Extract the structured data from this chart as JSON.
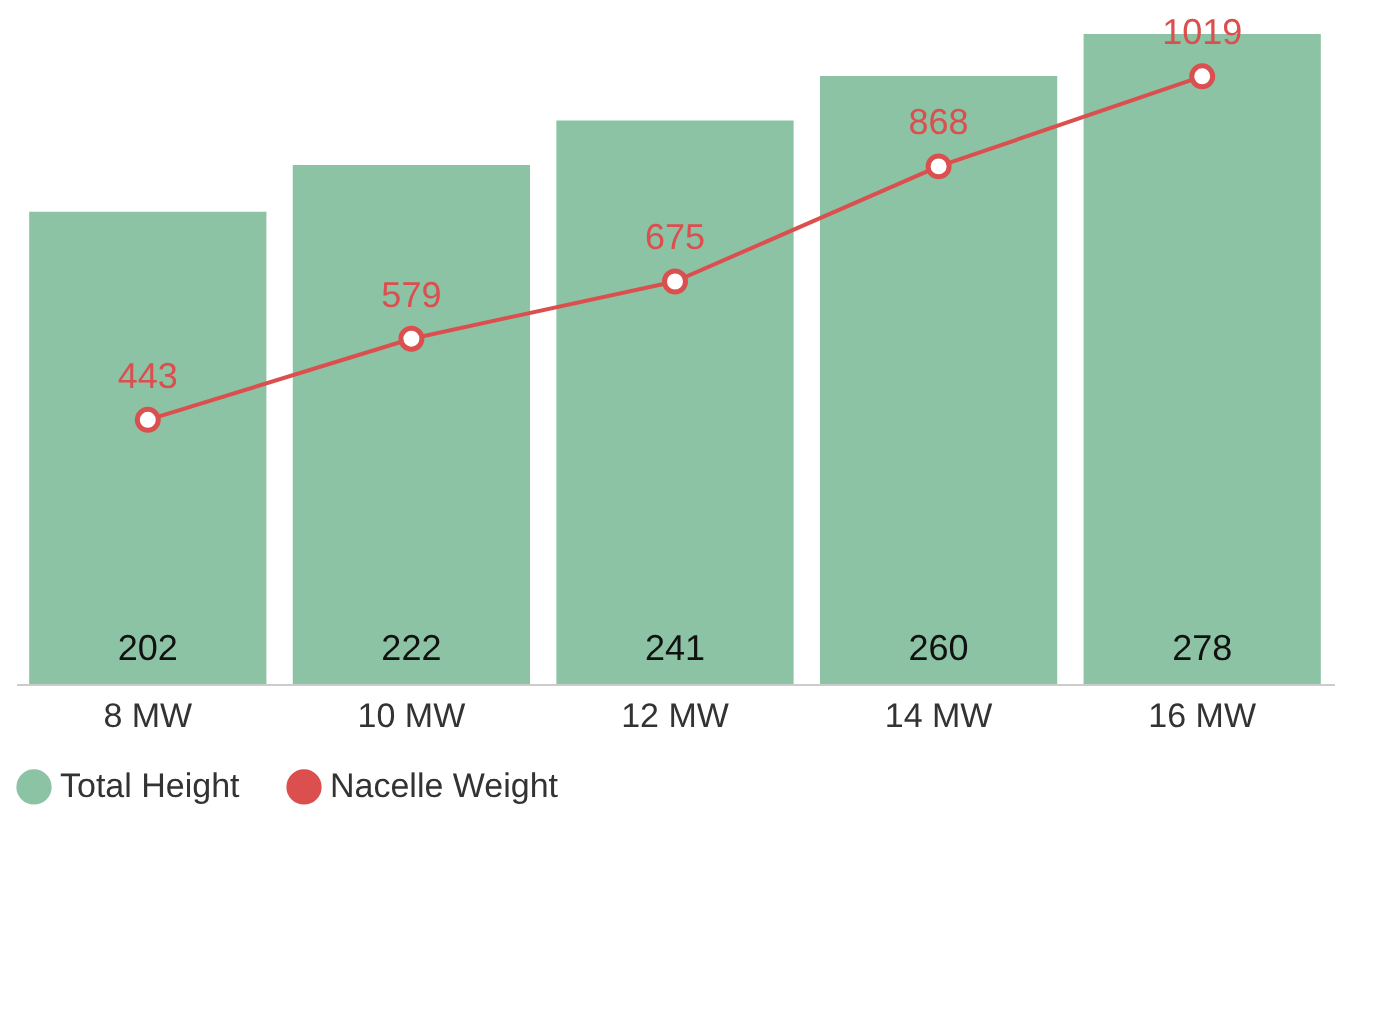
{
  "chart_data": {
    "type": "bar",
    "categories": [
      "8 MW",
      "10 MW",
      "12 MW",
      "14 MW",
      "16 MW"
    ],
    "series": [
      {
        "name": "Total Height",
        "color": "#8cc3a5",
        "values": [
          202,
          222,
          241,
          260,
          278
        ]
      },
      {
        "name": "Nacelle Weight",
        "type": "line",
        "axis": "y2",
        "color": "#db4f4f",
        "values": [
          443,
          579,
          675,
          868,
          1019
        ]
      }
    ],
    "ylim": [
      0,
      278
    ],
    "y2lim": [
      0,
      1090
    ],
    "tick_labels": "x",
    "data_labels": true,
    "legend": "bottom",
    "grid": false,
    "marker": "circle",
    "line_style": "solid"
  }
}
